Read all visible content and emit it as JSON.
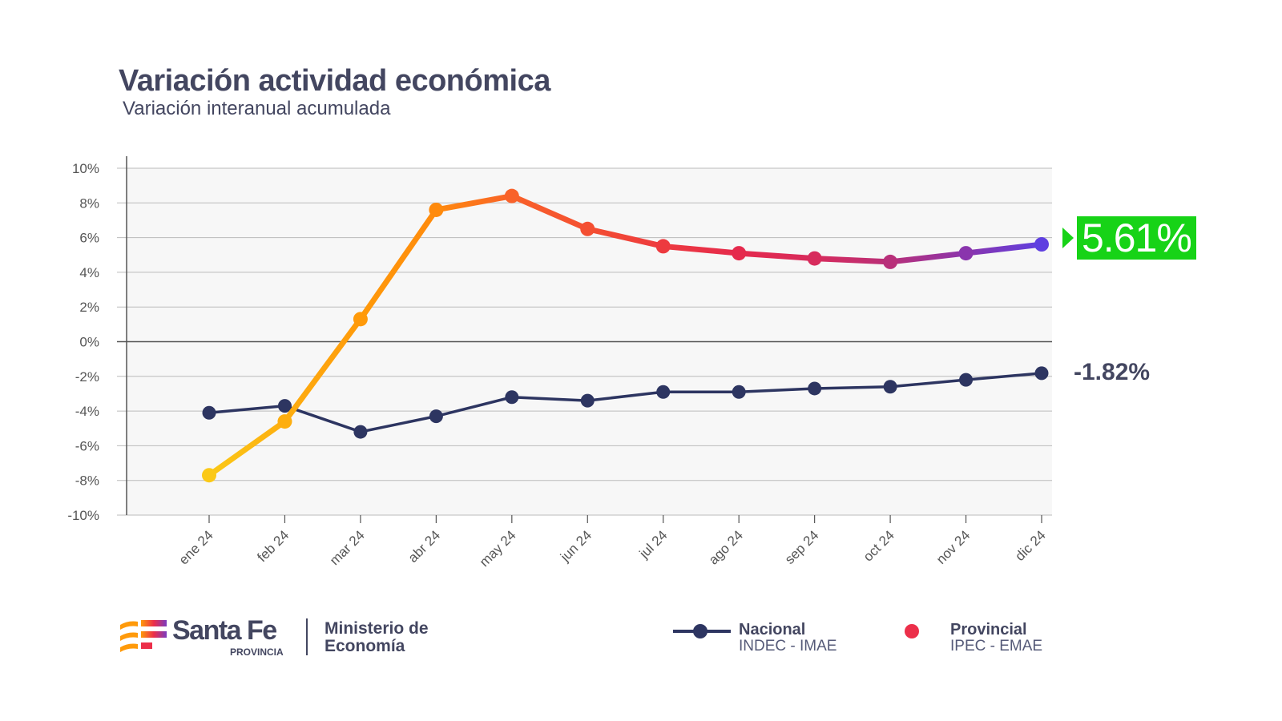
{
  "header": {
    "title": "Variación actividad económica",
    "subtitle": "Variación interanual acumulada"
  },
  "chart_data": {
    "type": "line",
    "title": "Variación actividad económica",
    "subtitle": "Variación interanual acumulada",
    "categories": [
      "ene 24",
      "feb 24",
      "mar 24",
      "abr 24",
      "may 24",
      "jun 24",
      "jul 24",
      "ago 24",
      "sep 24",
      "oct 24",
      "nov 24",
      "dic 24"
    ],
    "yticks": [
      "10%",
      "8%",
      "6%",
      "4%",
      "2%",
      "0%",
      "-2%",
      "-4%",
      "-6%",
      "-8%",
      "-10%"
    ],
    "ylim": [
      -10,
      10
    ],
    "grid": true,
    "legend_placement": "bottom-right",
    "series": [
      {
        "name": "Provincial",
        "source": "IPEC - EMAE",
        "values": [
          -7.7,
          -4.6,
          1.3,
          7.6,
          8.4,
          6.5,
          5.5,
          5.1,
          4.8,
          4.6,
          5.1,
          5.61
        ],
        "colors": [
          "#fbc917",
          "#fdae10",
          "#ff9a0a",
          "#ff8a0c",
          "#f9622a",
          "#f44f32",
          "#ed3a3f",
          "#e52a4d",
          "#d72b5c",
          "#b8307a",
          "#8a35ad",
          "#5f3fe0"
        ],
        "end_label": "5.61%",
        "end_label_bg": "#17d317"
      },
      {
        "name": "Nacional",
        "source": "INDEC - IMAE",
        "values": [
          -4.1,
          -3.7,
          -5.2,
          -4.3,
          -3.2,
          -3.4,
          -2.9,
          -2.9,
          -2.7,
          -2.6,
          -2.2,
          -1.82
        ],
        "color": "#2d3561",
        "end_label": "-1.82%"
      }
    ]
  },
  "footer": {
    "brand": "Santa Fe",
    "brand_sub": "PROVINCIA",
    "ministry": "Ministerio de Economía"
  }
}
